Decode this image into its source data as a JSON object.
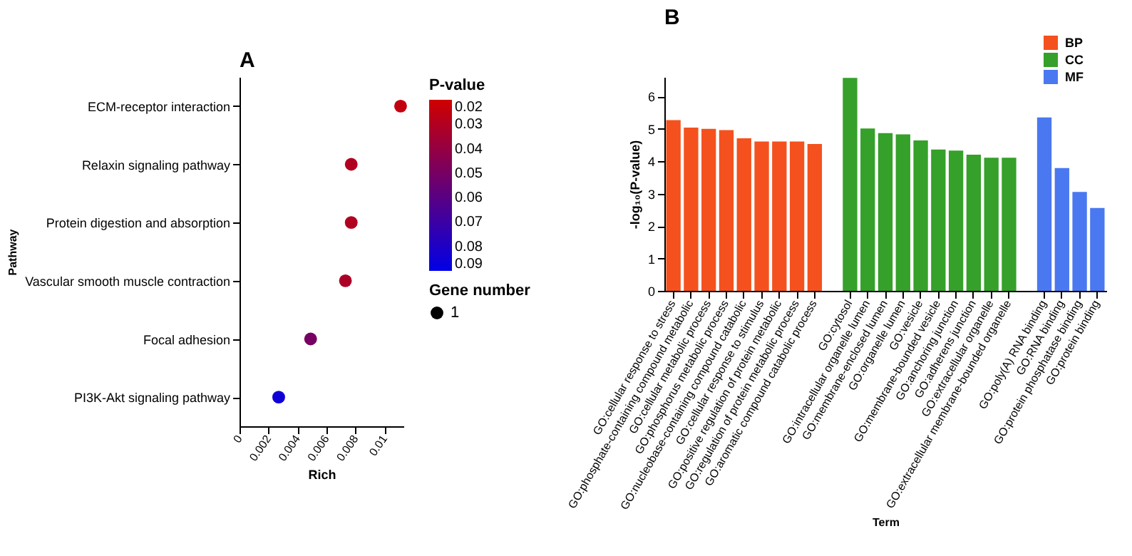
{
  "chart_data": [
    {
      "type": "bubble",
      "title": "A",
      "orientation": "horizontal",
      "categories": [
        "ECM-receptor interaction",
        "Relaxin signaling pathway",
        "Protein digestion and absorption",
        "Vascular smooth muscle contraction",
        "Focal adhesion",
        "PI3K-Akt signaling pathway"
      ],
      "values": [
        0.0111,
        0.0077,
        0.0077,
        0.0073,
        0.0049,
        0.0027
      ],
      "cvalues": [
        0.025,
        0.03,
        0.03,
        0.032,
        0.05,
        0.085
      ],
      "sizes": [
        1,
        1,
        1,
        1,
        1,
        1
      ],
      "size_legend": [
        1
      ],
      "legend_title": "Gene number",
      "clabel": "P-value",
      "clim": [
        0.02,
        0.09
      ],
      "cticks": [
        0.02,
        0.03,
        0.04,
        0.05,
        0.06,
        0.07,
        0.08,
        0.09
      ],
      "xlim": [
        0,
        0.0113
      ],
      "xticks": [
        0,
        0.002,
        0.004,
        0.006,
        0.008,
        0.01
      ],
      "xlabel": "Rich",
      "ylabel": "Pathway"
    },
    {
      "type": "bar",
      "title": "B",
      "categories": [
        "GO:cellular response to stress",
        "GO:phosphate-containing compound metabolic",
        "GO:cellular metabolic process",
        "GO:phosphorus metabolic process",
        "GO:nucleobase-containing compound catabolic",
        "GO:cellular response to stimulus",
        "GO:positive regulation of protein metabolic",
        "GO:regulation of protein metabolic process",
        "GO:aromatic compound catabolic process",
        "GO:cytosol",
        "GO:intracellular organelle lumen",
        "GO:membrane-enclosed lumen",
        "GO:organelle lumen",
        "GO:vesicle",
        "GO:membrane-bounded vesicle",
        "GO:anchoring junction",
        "GO:adherens junction",
        "GO:extracellular organelle",
        "GO:extracellular membrane-bounded organelle",
        "GO:poly(A) RNA binding",
        "GO:RNA binding",
        "GO:protein phosphatase binding",
        "GO:protein binding"
      ],
      "series": [
        {
          "name": "BP",
          "color": "#f4511e",
          "values": [
            5.27,
            5.04,
            5.0,
            4.96,
            4.71,
            4.61,
            4.61,
            4.61,
            4.53,
            null,
            null,
            null,
            null,
            null,
            null,
            null,
            null,
            null,
            null,
            null,
            null,
            null,
            null
          ]
        },
        {
          "name": "CC",
          "color": "#35a02a",
          "values": [
            null,
            null,
            null,
            null,
            null,
            null,
            null,
            null,
            null,
            6.57,
            5.01,
            4.87,
            4.83,
            4.64,
            4.36,
            4.33,
            4.2,
            4.11,
            4.11,
            null,
            null,
            null,
            null
          ]
        },
        {
          "name": "MF",
          "color": "#4a78f0",
          "values": [
            null,
            null,
            null,
            null,
            null,
            null,
            null,
            null,
            null,
            null,
            null,
            null,
            null,
            null,
            null,
            null,
            null,
            null,
            null,
            5.35,
            3.79,
            3.05,
            2.56
          ]
        }
      ],
      "ylim": [
        0,
        6.6
      ],
      "yticks": [
        0,
        1,
        2,
        3,
        4,
        5,
        6
      ],
      "xlabel": "Term",
      "ylabel": "-log₁₀(P-value)",
      "legend": "top right"
    }
  ]
}
